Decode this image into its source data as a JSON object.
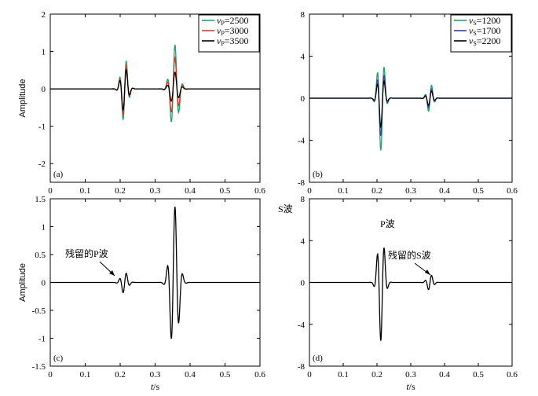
{
  "chart_data": [
    {
      "type": "line",
      "panel_label": "(a)",
      "ylabel": "Amplitude",
      "xlim": [
        0,
        0.6
      ],
      "ylim": [
        -2.5,
        2
      ],
      "xticks": [
        "0",
        "0.1",
        "0.2",
        "0.3",
        "0.4",
        "0.5",
        "0.6"
      ],
      "yticks": [
        "-2",
        "-1",
        "0",
        "1",
        "2"
      ],
      "series": [
        {
          "name_parts": [
            "v",
            "P",
            "=2500"
          ],
          "color": "#1aa36a",
          "a1": 0.9,
          "a2": 1.2
        },
        {
          "name_parts": [
            "v",
            "P",
            "=3000"
          ],
          "color": "#d23a2b",
          "a1": 0.75,
          "a2": 0.85
        },
        {
          "name_parts": [
            "v",
            "P",
            "=3500"
          ],
          "color": "#000000",
          "a1": 0.62,
          "a2": 0.45
        }
      ]
    },
    {
      "type": "line",
      "panel_label": "(b)",
      "ylabel": "",
      "xlim": [
        0,
        0.6
      ],
      "ylim": [
        -8,
        8
      ],
      "xticks": [
        "0",
        "0.1",
        "0.2",
        "0.3",
        "0.4",
        "0.5",
        "0.6"
      ],
      "yticks": [
        "-8",
        "-4",
        "0",
        "4",
        "8"
      ],
      "series": [
        {
          "name_parts": [
            "v",
            "S",
            "=1200"
          ],
          "color": "#1aa36a",
          "a1": 5.0,
          "a2": 1.45
        },
        {
          "name_parts": [
            "v",
            "S",
            "=1700"
          ],
          "color": "#3a3aa8",
          "a1": 3.6,
          "a2": 1.05
        },
        {
          "name_parts": [
            "v",
            "S",
            "=2200"
          ],
          "color": "#000000",
          "a1": 2.75,
          "a2": 0.8
        }
      ]
    },
    {
      "type": "line",
      "panel_label": "(c)",
      "ylabel": "Amplitude",
      "xlabel_parts": [
        "t",
        "/s"
      ],
      "xlim": [
        0,
        0.6
      ],
      "ylim": [
        -1.5,
        1.5
      ],
      "xticks": [
        "0",
        "0.1",
        "0.2",
        "0.3",
        "0.4",
        "0.5",
        "0.6"
      ],
      "yticks": [
        "-1.5",
        "-1",
        "-0.5",
        "0",
        "0.5",
        "1",
        "1.5"
      ],
      "annotations": [
        "S波",
        "残留的P波"
      ],
      "series": [
        {
          "color": "#000000",
          "a1": 0.2,
          "a2": 1.38
        }
      ]
    },
    {
      "type": "line",
      "panel_label": "(d)",
      "ylabel": "",
      "xlabel_parts": [
        "t",
        "/s"
      ],
      "xlim": [
        0,
        0.6
      ],
      "ylim": [
        -8,
        8
      ],
      "xticks": [
        "0",
        "0.1",
        "0.2",
        "0.3",
        "0.4",
        "0.5",
        "0.6"
      ],
      "yticks": [
        "-8",
        "-4",
        "0",
        "4",
        "8"
      ],
      "annotations": [
        "P波",
        "残留的S波"
      ],
      "series": [
        {
          "color": "#000000",
          "a1": 5.6,
          "a2": 0.8
        }
      ]
    }
  ]
}
